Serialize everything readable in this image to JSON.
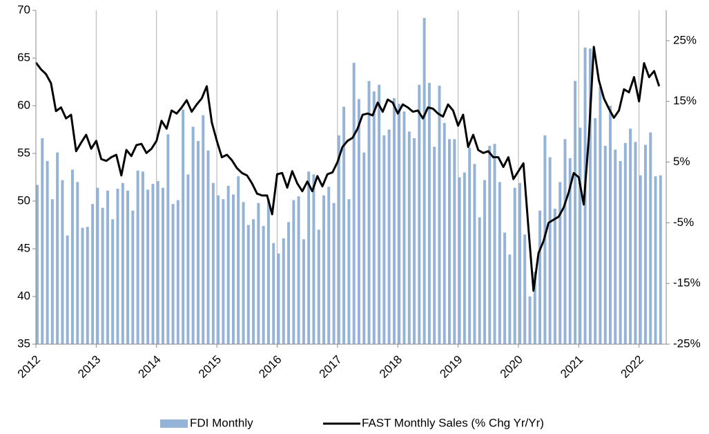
{
  "chart_data": {
    "type": "bar-line",
    "x": [
      2012,
      2012.083,
      2012.167,
      2012.25,
      2012.333,
      2012.417,
      2012.5,
      2012.583,
      2012.667,
      2012.75,
      2012.833,
      2012.917,
      2013,
      2013.083,
      2013.167,
      2013.25,
      2013.333,
      2013.417,
      2013.5,
      2013.583,
      2013.667,
      2013.75,
      2013.833,
      2013.917,
      2014,
      2014.083,
      2014.167,
      2014.25,
      2014.333,
      2014.417,
      2014.5,
      2014.583,
      2014.667,
      2014.75,
      2014.833,
      2014.917,
      2015,
      2015.083,
      2015.167,
      2015.25,
      2015.333,
      2015.417,
      2015.5,
      2015.583,
      2015.667,
      2015.75,
      2015.833,
      2015.917,
      2016,
      2016.083,
      2016.167,
      2016.25,
      2016.333,
      2016.417,
      2016.5,
      2016.583,
      2016.667,
      2016.75,
      2016.833,
      2016.917,
      2017,
      2017.083,
      2017.167,
      2017.25,
      2017.333,
      2017.417,
      2017.5,
      2017.583,
      2017.667,
      2017.75,
      2017.833,
      2017.917,
      2018,
      2018.083,
      2018.167,
      2018.25,
      2018.333,
      2018.417,
      2018.5,
      2018.583,
      2018.667,
      2018.75,
      2018.833,
      2018.917,
      2019,
      2019.083,
      2019.167,
      2019.25,
      2019.333,
      2019.417,
      2019.5,
      2019.583,
      2019.667,
      2019.75,
      2019.833,
      2019.917,
      2020,
      2020.083,
      2020.167,
      2020.25,
      2020.333,
      2020.417,
      2020.5,
      2020.583,
      2020.667,
      2020.75,
      2020.833,
      2020.917,
      2021,
      2021.083,
      2021.167,
      2021.25,
      2021.333,
      2021.417,
      2021.5,
      2021.583,
      2021.667,
      2021.75,
      2021.833,
      2021.917,
      2022,
      2022.083,
      2022.167,
      2022.25,
      2022.333
    ],
    "series": [
      {
        "name": "FDI Monthly",
        "type": "bar",
        "color": "#95b3d7",
        "values": [
          51.7,
          56.6,
          54.2,
          50.2,
          55.1,
          52.2,
          46.4,
          53.3,
          52.0,
          47.2,
          47.3,
          49.7,
          51.4,
          49.3,
          51.1,
          48.1,
          51.3,
          51.9,
          51.1,
          49.0,
          53.2,
          53.1,
          51.2,
          51.8,
          52.1,
          51.4,
          57.0,
          49.7,
          50.1,
          59.6,
          52.8,
          57.8,
          56.3,
          59.0,
          55.3,
          51.9,
          50.6,
          50.2,
          51.6,
          50.7,
          52.6,
          49.9,
          47.5,
          48.1,
          49.8,
          47.4,
          50.2,
          45.6,
          44.5,
          46.1,
          47.8,
          50.1,
          50.5,
          46.0,
          53.1,
          52.8,
          47.0,
          50.6,
          51.5,
          49.8,
          56.9,
          59.9,
          50.2,
          64.5,
          60.7,
          55.1,
          62.6,
          61.5,
          62.2,
          56.9,
          57.5,
          60.8,
          60.2,
          59.4,
          57.3,
          56.6,
          62.2,
          69.2,
          62.4,
          55.7,
          62.1,
          58.2,
          56.5,
          56.5,
          52.5,
          53.0,
          55.6,
          53.9,
          48.3,
          52.2,
          55.8,
          56.0,
          52.0,
          46.7,
          44.4,
          51.4,
          51.9,
          46.5,
          40.0,
          42.6,
          49.0,
          56.9,
          54.6,
          49.2,
          52.0,
          56.5,
          54.5,
          62.6,
          57.7,
          66.1,
          66.0,
          58.7,
          62.0,
          55.8,
          60.0,
          55.4,
          54.2,
          56.1,
          57.6,
          56.2,
          52.7,
          55.9,
          57.2,
          52.6,
          52.7
        ]
      },
      {
        "name": "FAST Monthly Sales (% Chg Yr/Yr)",
        "type": "line",
        "axis": "y2",
        "color": "#000000",
        "values": [
          21.4,
          20.3,
          19.5,
          18.0,
          13.4,
          14.0,
          12.2,
          12.8,
          6.8,
          8.2,
          9.5,
          7.2,
          8.5,
          5.5,
          5.2,
          5.8,
          6.2,
          2.8,
          7.0,
          6.0,
          7.8,
          8.0,
          6.5,
          7.2,
          8.5,
          11.8,
          10.5,
          13.5,
          13.0,
          14.0,
          15.2,
          13.3,
          14.5,
          15.5,
          17.5,
          11.5,
          8.5,
          5.8,
          6.2,
          5.3,
          4.0,
          3.2,
          2.8,
          1.5,
          -0.2,
          -0.5,
          -0.5,
          -3.6,
          3.0,
          3.2,
          0.8,
          3.5,
          1.5,
          0.2,
          1.8,
          0.2,
          2.7,
          1.0,
          3.0,
          3.3,
          5.0,
          7.5,
          8.5,
          9.0,
          10.5,
          12.8,
          13.0,
          12.7,
          14.8,
          13.3,
          15.3,
          14.8,
          13.0,
          14.5,
          14.0,
          13.3,
          13.5,
          12.2,
          14.0,
          13.8,
          13.0,
          12.5,
          14.5,
          13.5,
          11.0,
          12.8,
          7.5,
          9.5,
          7.0,
          6.5,
          6.8,
          5.8,
          5.8,
          4.2,
          5.8,
          2.2,
          3.5,
          4.8,
          -6.0,
          -16.2,
          -10.0,
          -8.0,
          -5.0,
          -4.5,
          -4.0,
          -2.5,
          0.0,
          3.2,
          2.5,
          -2.0,
          9.0,
          24.0,
          18.5,
          15.5,
          13.8,
          12.3,
          13.5,
          17.0,
          16.5,
          19.0,
          15.0,
          21.3,
          19.0,
          20.0,
          17.5
        ]
      }
    ],
    "xlim": [
      2012,
      2022.45
    ],
    "xticks": [
      2012,
      2013,
      2014,
      2015,
      2016,
      2017,
      2018,
      2019,
      2020,
      2021,
      2022
    ],
    "ylim": [
      35,
      70
    ],
    "yticks": [
      35,
      40,
      45,
      50,
      55,
      60,
      65,
      70
    ],
    "y2lim": [
      -25,
      30
    ],
    "y2ticks": [
      {
        "value": -25,
        "label": "-25%"
      },
      {
        "value": -15,
        "label": "-15%"
      },
      {
        "value": -5,
        "label": "-5%"
      },
      {
        "value": 5,
        "label": "5%"
      },
      {
        "value": 15,
        "label": "15%"
      },
      {
        "value": 25,
        "label": "25%"
      }
    ],
    "grid": true,
    "legend": "bottom"
  }
}
